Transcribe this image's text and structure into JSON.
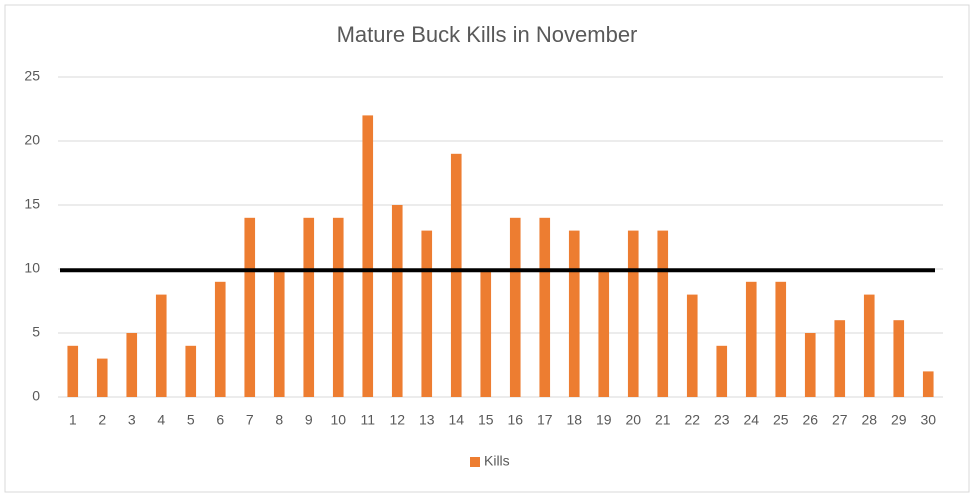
{
  "chart_data": {
    "type": "bar",
    "title": "Mature Buck Kills in November",
    "categories": [
      "1",
      "2",
      "3",
      "4",
      "5",
      "6",
      "7",
      "8",
      "9",
      "10",
      "11",
      "12",
      "13",
      "14",
      "15",
      "16",
      "17",
      "18",
      "19",
      "20",
      "21",
      "22",
      "23",
      "24",
      "25",
      "26",
      "27",
      "28",
      "29",
      "30"
    ],
    "series": [
      {
        "name": "Kills",
        "color": "#ed7d31",
        "values": [
          4,
          3,
          5,
          8,
          4,
          9,
          14,
          10,
          14,
          14,
          22,
          15,
          13,
          19,
          10,
          14,
          14,
          13,
          10,
          13,
          13,
          8,
          4,
          9,
          9,
          5,
          6,
          8,
          6,
          2
        ]
      }
    ],
    "ylim": [
      0,
      25
    ],
    "yticks": [
      0,
      5,
      10,
      15,
      20,
      25
    ],
    "grid": true,
    "reference_line": {
      "value": 9.9,
      "color": "#000000"
    },
    "legend": "bottom"
  }
}
